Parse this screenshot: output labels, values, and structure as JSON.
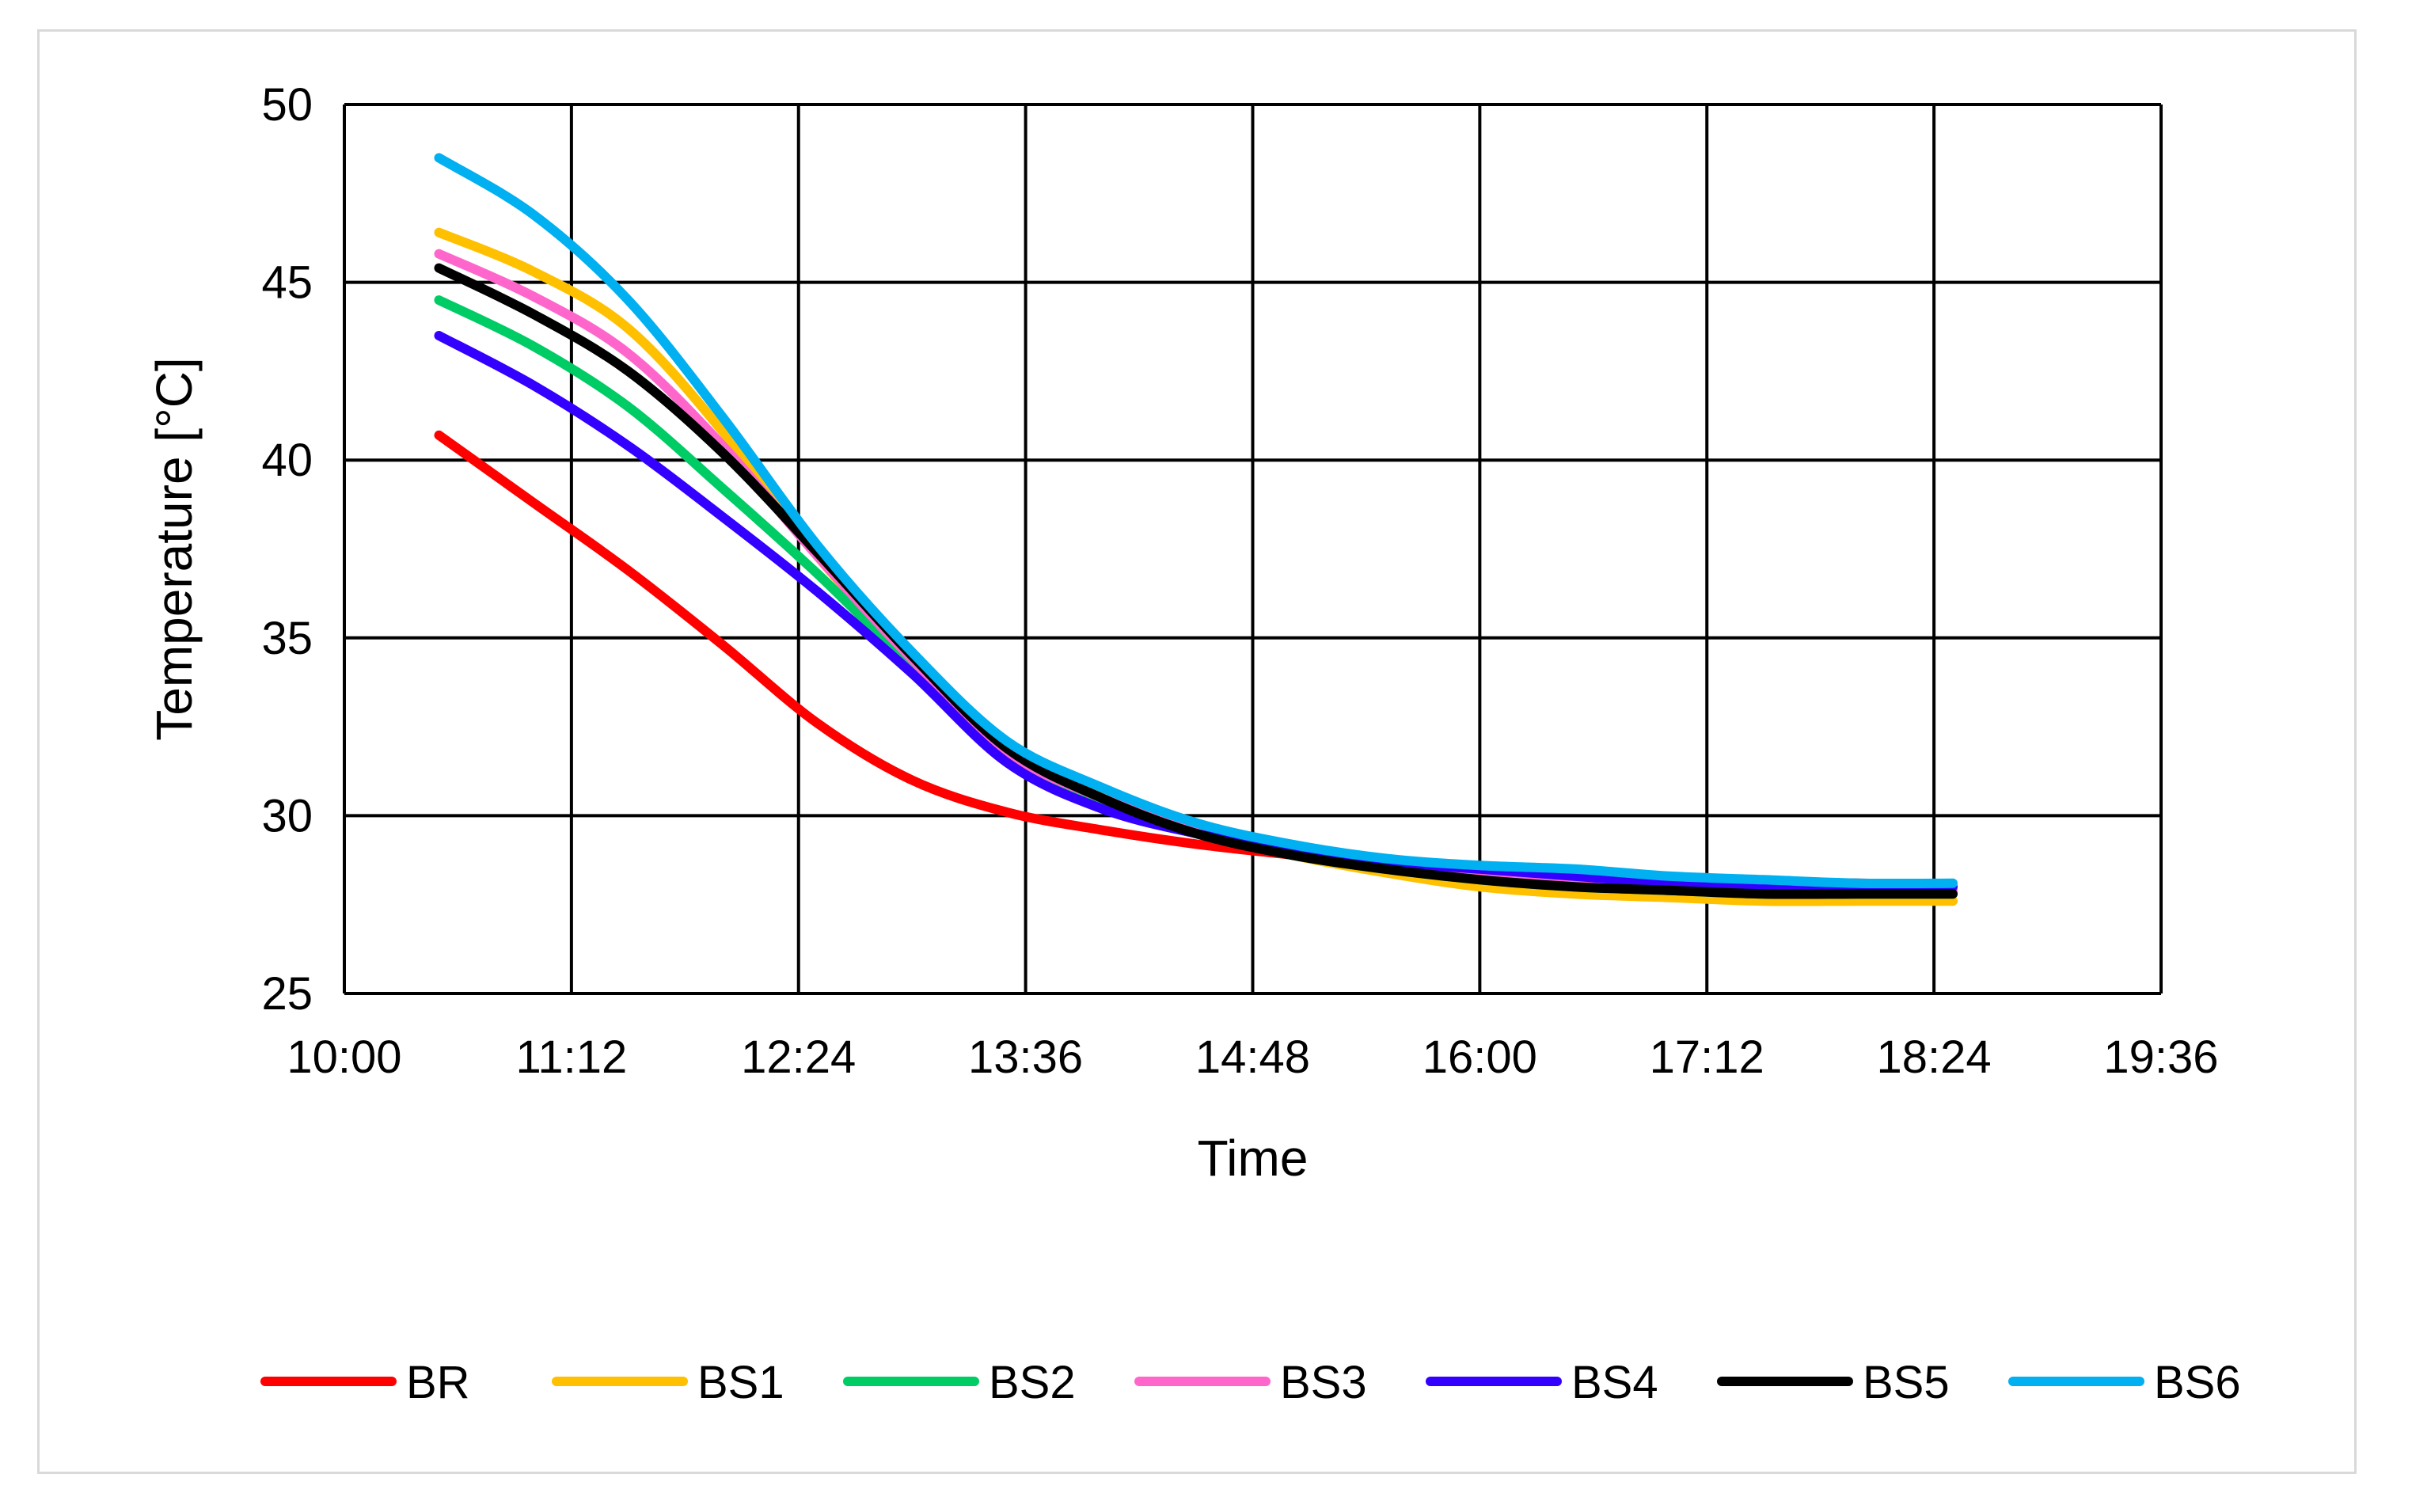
{
  "chart_data": {
    "type": "line",
    "title": "",
    "xlabel": "Time",
    "ylabel": "Temperature [°C]",
    "xlim": [
      "10:00",
      "19:36"
    ],
    "ylim": [
      25,
      50
    ],
    "x_ticks": [
      "10:00",
      "11:12",
      "12:24",
      "13:36",
      "14:48",
      "16:00",
      "17:12",
      "18:24",
      "19:36"
    ],
    "y_ticks": [
      25,
      30,
      35,
      40,
      45,
      50
    ],
    "grid": true,
    "legend_position": "bottom",
    "x": [
      "10:30",
      "11:00",
      "11:30",
      "12:00",
      "12:30",
      "13:00",
      "13:30",
      "14:00",
      "14:30",
      "15:00",
      "15:30",
      "16:00",
      "16:30",
      "17:00",
      "17:30",
      "18:00",
      "18:30"
    ],
    "series": [
      {
        "name": "BR",
        "color": "#ff0000",
        "values": [
          40.7,
          38.8,
          36.9,
          34.8,
          32.6,
          31.0,
          30.1,
          29.6,
          29.2,
          28.9,
          28.6,
          28.3,
          28.2,
          28.1,
          28.1,
          28.1,
          28.0
        ]
      },
      {
        "name": "BS1",
        "color": "#ffc000",
        "values": [
          46.4,
          45.3,
          43.7,
          40.8,
          37.3,
          34.4,
          31.9,
          30.6,
          29.6,
          28.9,
          28.4,
          28.0,
          27.8,
          27.7,
          27.6,
          27.6,
          27.6
        ]
      },
      {
        "name": "BS2",
        "color": "#00cc66",
        "values": [
          44.5,
          43.2,
          41.5,
          39.2,
          36.8,
          34.2,
          31.7,
          30.4,
          29.5,
          28.9,
          28.5,
          28.2,
          28.0,
          27.9,
          27.8,
          27.8,
          27.8
        ]
      },
      {
        "name": "BS3",
        "color": "#ff66cc",
        "values": [
          45.8,
          44.6,
          43.0,
          40.4,
          37.3,
          34.4,
          31.8,
          30.5,
          29.6,
          29.0,
          28.6,
          28.3,
          28.2,
          28.0,
          27.9,
          27.9,
          27.9
        ]
      },
      {
        "name": "BS4",
        "color": "#3300ff",
        "values": [
          43.5,
          42.1,
          40.4,
          38.4,
          36.3,
          34.0,
          31.5,
          30.2,
          29.5,
          29.0,
          28.7,
          28.5,
          28.3,
          28.1,
          28.0,
          28.0,
          28.0
        ]
      },
      {
        "name": "BS5",
        "color": "#000000",
        "values": [
          45.4,
          44.1,
          42.5,
          40.2,
          37.4,
          34.5,
          31.9,
          30.5,
          29.5,
          28.9,
          28.5,
          28.2,
          28.0,
          27.9,
          27.8,
          27.8,
          27.8
        ]
      },
      {
        "name": "BS6",
        "color": "#00b0f0",
        "values": [
          48.5,
          46.9,
          44.5,
          41.2,
          37.6,
          34.6,
          32.1,
          30.8,
          29.8,
          29.2,
          28.8,
          28.6,
          28.5,
          28.3,
          28.2,
          28.1,
          28.1
        ]
      }
    ]
  }
}
